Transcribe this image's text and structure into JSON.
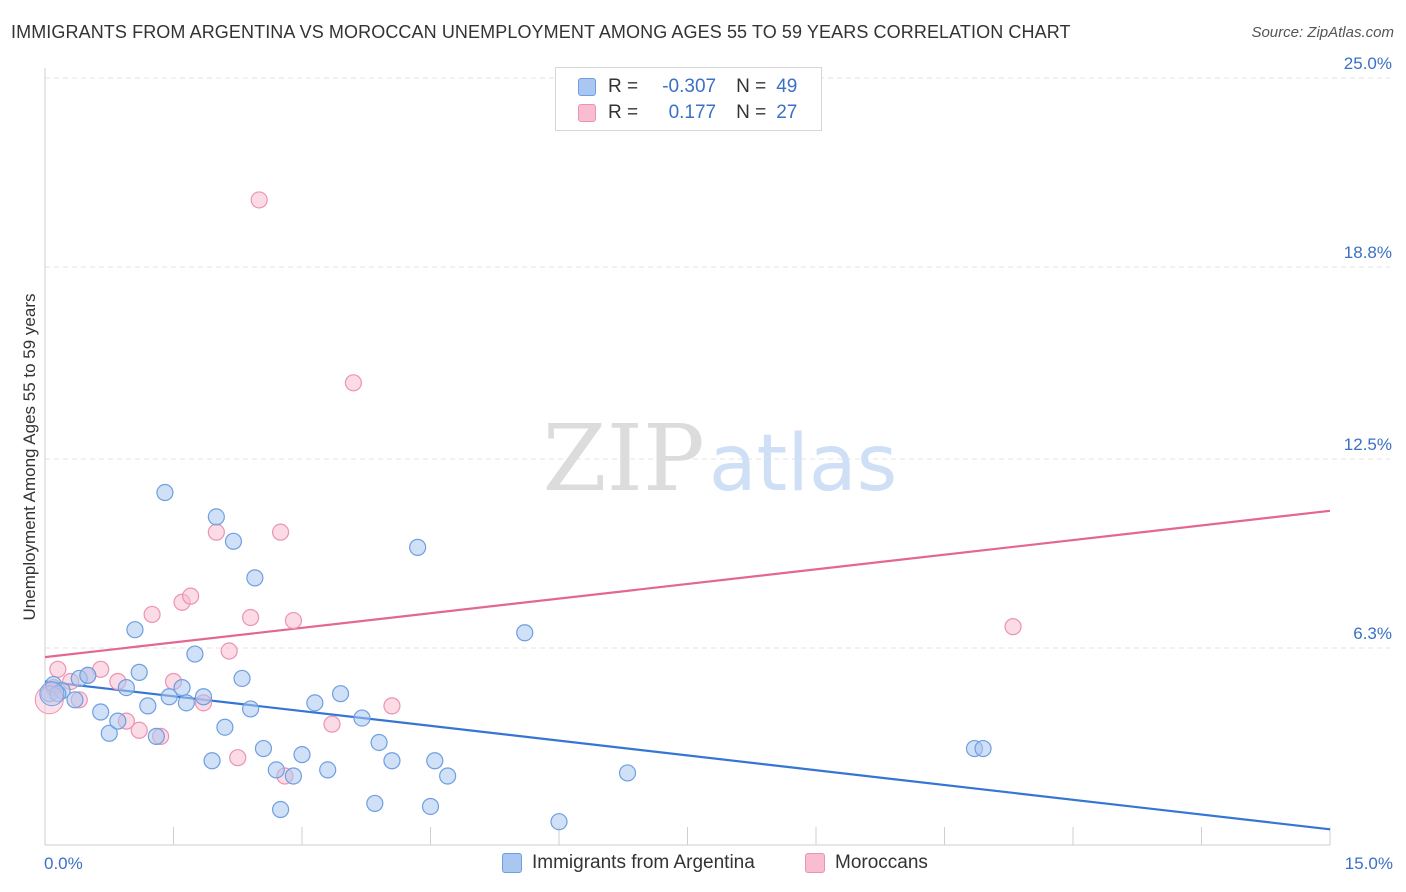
{
  "title": "IMMIGRANTS FROM ARGENTINA VS MOROCCAN UNEMPLOYMENT AMONG AGES 55 TO 59 YEARS CORRELATION CHART",
  "source": "Source: ZipAtlas.com",
  "watermark": {
    "zip": "ZIP",
    "atlas": "atlas"
  },
  "legend_stats": [
    {
      "r_label": "R =",
      "r_value": "-0.307",
      "n_label": "N =",
      "n_value": "49"
    },
    {
      "r_label": "R =",
      "r_value": "0.177",
      "n_label": "N =",
      "n_value": "27"
    }
  ],
  "colors": {
    "blue_fill": "#a9c7f0",
    "blue_stroke": "#6e9fe0",
    "blue_line": "#3575d3",
    "pink_fill": "#f8bdd0",
    "pink_stroke": "#ec93b2",
    "pink_line": "#e36694",
    "axis_label": "#3a70c5",
    "grid": "#e3e3e3"
  },
  "chart_data": {
    "type": "scatter",
    "title": "IMMIGRANTS FROM ARGENTINA VS MOROCCAN UNEMPLOYMENT AMONG AGES 55 TO 59 YEARS CORRELATION CHART",
    "xlabel": "",
    "ylabel": "Unemployment Among Ages 55 to 59 years",
    "xlim": [
      0,
      15
    ],
    "ylim": [
      0,
      25
    ],
    "x_tick_labels": [
      "0.0%",
      "15.0%"
    ],
    "y_ticks": [
      6.3,
      12.5,
      18.8,
      25.0
    ],
    "y_tick_labels": [
      "6.3%",
      "12.5%",
      "18.8%",
      "25.0%"
    ],
    "grid": true,
    "legend_position": "top-center",
    "series": [
      {
        "name": "Immigrants from Argentina",
        "r": -0.307,
        "n": 49,
        "trend": [
          [
            0,
            5.2
          ],
          [
            15,
            0.35
          ]
        ],
        "points": [
          [
            0.05,
            4.8
          ],
          [
            0.1,
            5.1
          ],
          [
            0.2,
            4.9
          ],
          [
            0.35,
            4.6
          ],
          [
            0.4,
            5.3
          ],
          [
            0.5,
            5.4
          ],
          [
            0.65,
            4.2
          ],
          [
            0.75,
            3.5
          ],
          [
            0.85,
            3.9
          ],
          [
            0.95,
            5.0
          ],
          [
            1.05,
            6.9
          ],
          [
            1.1,
            5.5
          ],
          [
            1.2,
            4.4
          ],
          [
            1.3,
            3.4
          ],
          [
            1.4,
            11.4
          ],
          [
            1.45,
            4.7
          ],
          [
            1.6,
            5.0
          ],
          [
            1.65,
            4.5
          ],
          [
            1.75,
            6.1
          ],
          [
            1.85,
            4.7
          ],
          [
            1.95,
            2.6
          ],
          [
            2.0,
            10.6
          ],
          [
            2.1,
            3.7
          ],
          [
            2.2,
            9.8
          ],
          [
            2.3,
            5.3
          ],
          [
            2.4,
            4.3
          ],
          [
            2.45,
            8.6
          ],
          [
            2.55,
            3.0
          ],
          [
            2.7,
            2.3
          ],
          [
            2.75,
            1.0
          ],
          [
            2.9,
            2.1
          ],
          [
            3.0,
            2.8
          ],
          [
            3.15,
            4.5
          ],
          [
            3.3,
            2.3
          ],
          [
            3.45,
            4.8
          ],
          [
            3.7,
            4.0
          ],
          [
            3.85,
            1.2
          ],
          [
            3.9,
            3.2
          ],
          [
            4.05,
            2.6
          ],
          [
            4.35,
            9.6
          ],
          [
            4.5,
            1.1
          ],
          [
            4.55,
            2.6
          ],
          [
            4.7,
            2.1
          ],
          [
            5.6,
            6.8
          ],
          [
            6.0,
            0.6
          ],
          [
            6.8,
            2.2
          ],
          [
            10.85,
            3.0
          ],
          [
            10.95,
            3.0
          ],
          [
            0.15,
            4.8
          ]
        ]
      },
      {
        "name": "Moroccans",
        "r": 0.177,
        "n": 27,
        "trend": [
          [
            0,
            6.0
          ],
          [
            15,
            10.8
          ]
        ],
        "points": [
          [
            0.1,
            5.0
          ],
          [
            0.15,
            5.6
          ],
          [
            0.3,
            5.2
          ],
          [
            0.4,
            4.6
          ],
          [
            0.5,
            5.4
          ],
          [
            0.65,
            5.6
          ],
          [
            0.85,
            5.2
          ],
          [
            0.95,
            3.9
          ],
          [
            1.1,
            3.6
          ],
          [
            1.25,
            7.4
          ],
          [
            1.35,
            3.4
          ],
          [
            1.5,
            5.2
          ],
          [
            1.6,
            7.8
          ],
          [
            1.7,
            8.0
          ],
          [
            1.85,
            4.5
          ],
          [
            2.0,
            10.1
          ],
          [
            2.15,
            6.2
          ],
          [
            2.25,
            2.7
          ],
          [
            2.4,
            7.3
          ],
          [
            2.5,
            21.0
          ],
          [
            2.75,
            10.1
          ],
          [
            2.8,
            2.1
          ],
          [
            2.9,
            7.2
          ],
          [
            3.35,
            3.8
          ],
          [
            3.6,
            15.0
          ],
          [
            4.05,
            4.4
          ],
          [
            11.3,
            7.0
          ]
        ]
      }
    ]
  },
  "bottom_legend": [
    "Immigrants from Argentina",
    "Moroccans"
  ]
}
